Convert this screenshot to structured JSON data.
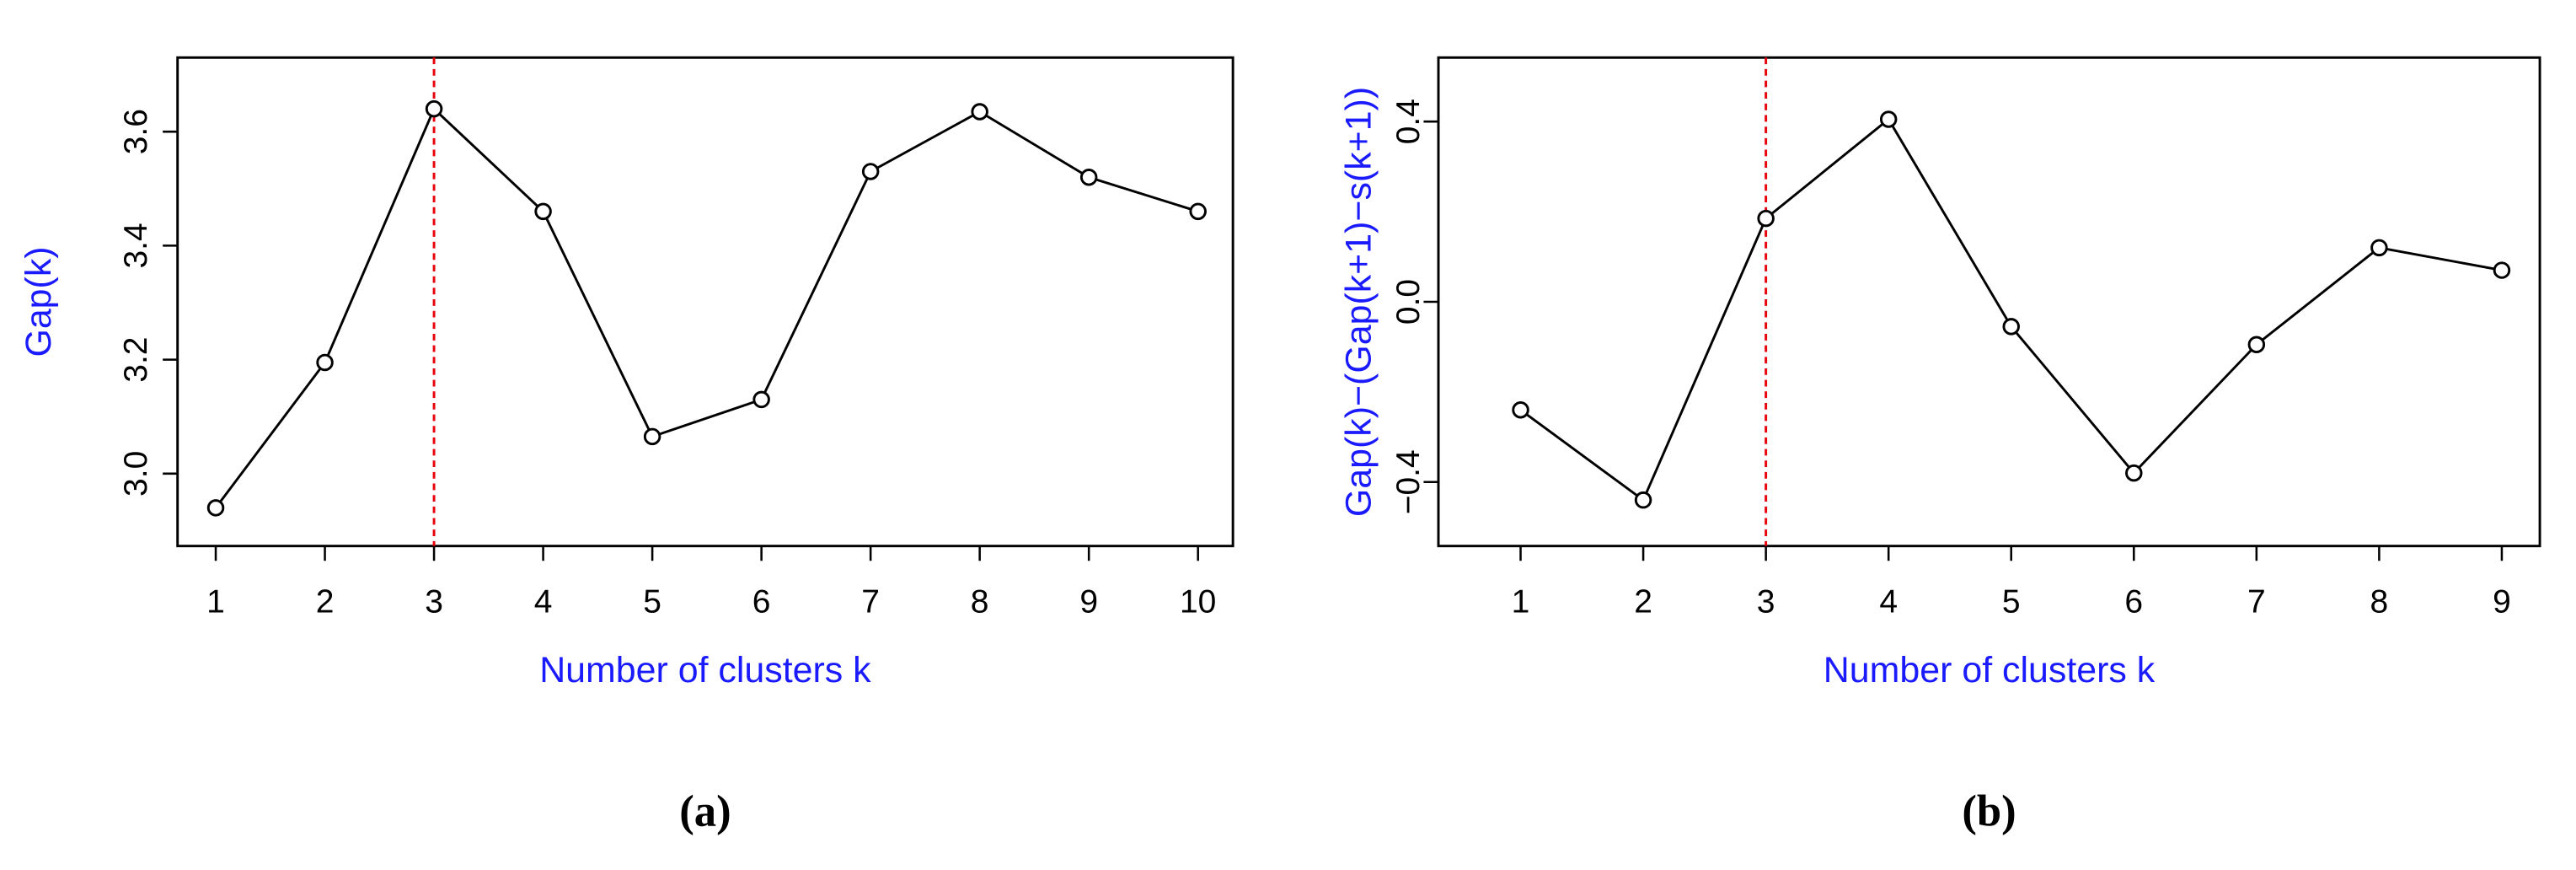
{
  "chart_data": [
    {
      "type": "line",
      "panel_label": "(a)",
      "xlabel": "Number of clusters k",
      "ylabel": "Gap(k)",
      "x": [
        1,
        2,
        3,
        4,
        5,
        6,
        7,
        8,
        9,
        10
      ],
      "values": [
        2.94,
        3.195,
        3.64,
        3.46,
        3.065,
        3.13,
        3.53,
        3.635,
        3.52,
        3.46
      ],
      "xlim": [
        0.65,
        10.32
      ],
      "ylim": [
        2.873,
        3.73
      ],
      "xticks": [
        1,
        2,
        3,
        4,
        5,
        6,
        7,
        8,
        9,
        10
      ],
      "yticks": [
        {
          "value": 3,
          "label": "3.0"
        },
        {
          "value": 3.2,
          "label": "3.2"
        },
        {
          "value": 3.4,
          "label": "3.4"
        },
        {
          "value": 3.6,
          "label": "3.6"
        }
      ],
      "color": "#000000",
      "label_color": "#1a1aff",
      "vline": 3,
      "vline_color": "#e8000b"
    },
    {
      "type": "line",
      "panel_label": "(b)",
      "xlabel": "Number of clusters k",
      "ylabel": "Gap(k)−(Gap(k+1)−s(k+1))",
      "x": [
        1,
        2,
        3,
        4,
        5,
        6,
        7,
        8,
        9
      ],
      "values": [
        -0.24,
        -0.44,
        0.185,
        0.405,
        -0.055,
        -0.38,
        -0.095,
        0.12,
        0.07
      ],
      "xlim": [
        0.33,
        9.31
      ],
      "ylim": [
        -0.542,
        0.542
      ],
      "xticks": [
        1,
        2,
        3,
        4,
        5,
        6,
        7,
        8,
        9
      ],
      "yticks": [
        {
          "value": -0.4,
          "label": "−0.4"
        },
        {
          "value": 0,
          "label": "0.0"
        },
        {
          "value": 0.4,
          "label": "0.4"
        }
      ],
      "color": "#000000",
      "label_color": "#1a1aff",
      "vline": 3,
      "vline_color": "#e8000b"
    }
  ]
}
